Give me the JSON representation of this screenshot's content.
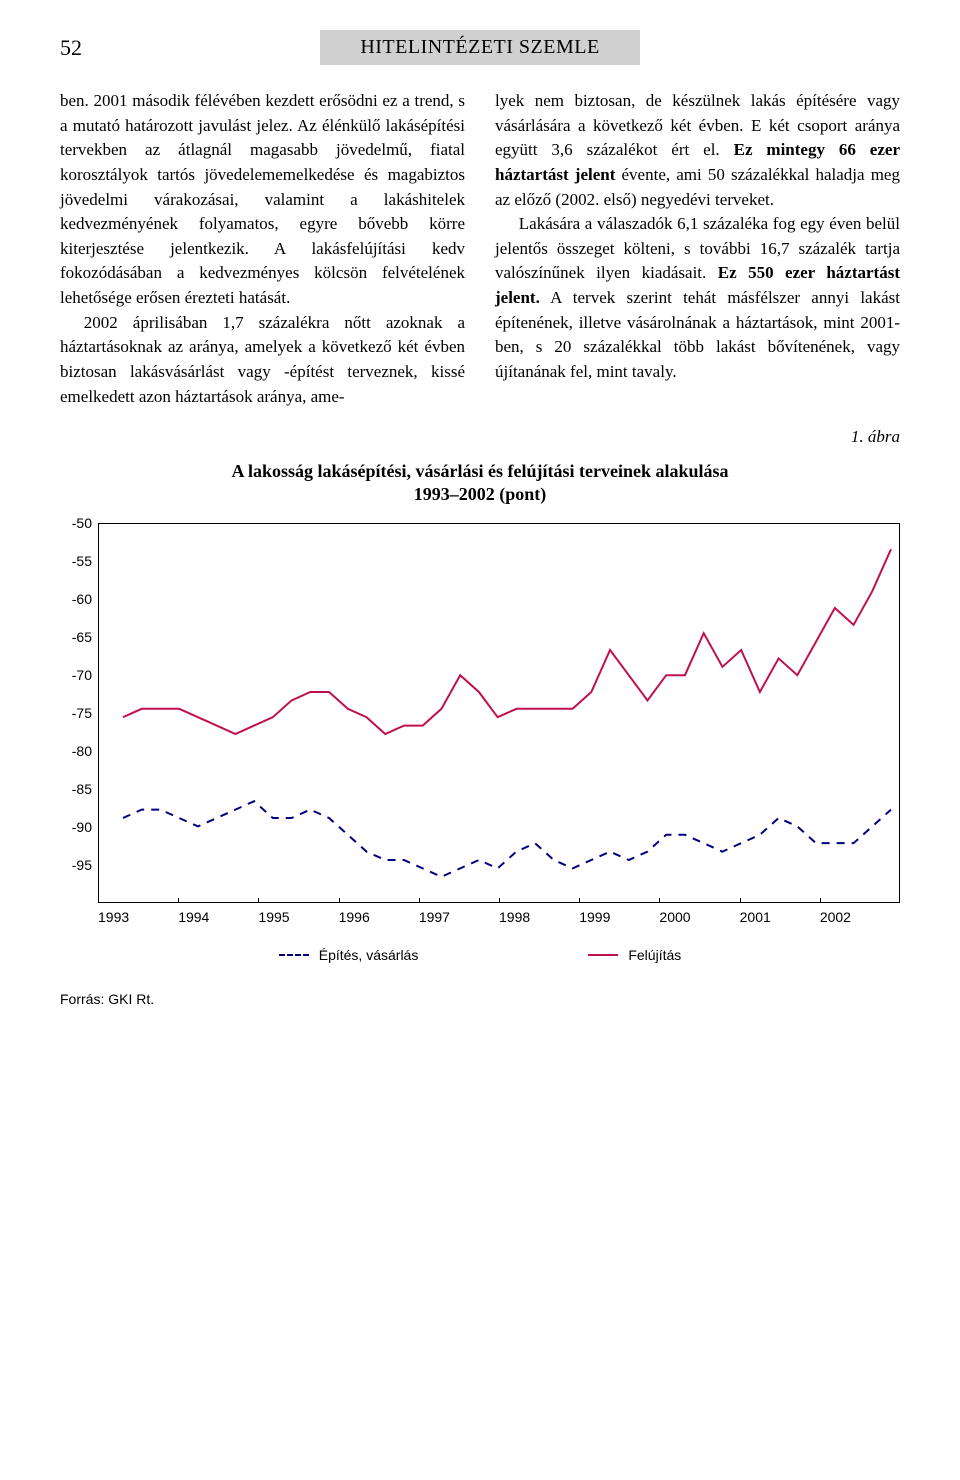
{
  "page_number": "52",
  "banner_title": "HITELINTÉZETI SZEMLE",
  "body": {
    "left": [
      "ben. 2001 második félévében kezdett erősödni ez a trend, s a mutató határozott javulást jelez. Az élénkülő lakásépítési tervekben az átlagnál magasabb jövedelmű, fiatal korosztályok tartós jövedelememelkedése és magabiztos jövedelmi várakozásai, valamint a lakáshitelek kedvezményének folyamatos, egyre bővebb körre kiterjesztése jelentkezik. A lakásfelújítási kedv fokozódásában a kedvezményes kölcsön felvételének lehetősége erősen érezteti hatását.",
      "2002 áprilisában 1,7 százalékra nőtt azoknak a háztartásoknak az aránya, amelyek a következő két évben biztosan lakásvásárlást vagy -építést terveznek, kissé emelkedett azon háztartások aránya, ame-"
    ],
    "right_pre": "lyek nem biztosan, de készülnek lakás építésére vagy vásárlására a következő két évben. E két csoport aránya együtt 3,6 százalékot ért el. ",
    "right_bold1": "Ez mintegy 66 ezer háztartást jelent",
    "right_mid1": " évente, ami 50 százalékkal haladja meg az előző (2002. első) negyedévi terveket.",
    "right_para2_pre": "Lakására a válaszadók 6,1 százaléka fog egy éven belül jelentős összeget költeni, s további 16,7 százalék tartja valószínűnek ilyen kiadásait. ",
    "right_bold2": "Ez 550 ezer háztartást jelent.",
    "right_para2_post": " A tervek szerint tehát másfélszer annyi lakást építenének, illetve vásárolnának a háztartások, mint 2001-ben, s 20 százalékkal több lakást bővítenének, vagy újítanának fel, mint tavaly."
  },
  "figure_label": "1. ábra",
  "chart": {
    "title": "A lakosság lakásépítési, vásárlási és felújítási terveinek alakulása",
    "subtitle": "1993–2002 (pont)",
    "type": "line",
    "ylim": [
      -95,
      -50
    ],
    "ytick_step": 5,
    "yticks": [
      "-50",
      "-55",
      "-60",
      "-65",
      "-70",
      "-75",
      "-80",
      "-85",
      "-90",
      "-95"
    ],
    "xcats": [
      "1993",
      "1994",
      "1995",
      "1996",
      "1997",
      "1998",
      "1999",
      "2000",
      "2001",
      "2002"
    ],
    "background_color": "#ffffff",
    "border_color": "#000000",
    "series": [
      {
        "name": "Felújítás",
        "color": "#c01050",
        "dash": "solid",
        "width": 2,
        "values": [
          -73,
          -72,
          -72,
          -72,
          -73,
          -74,
          -75,
          -74,
          -73,
          -71,
          -70,
          -70,
          -72,
          -73,
          -75,
          -74,
          -74,
          -72,
          -68,
          -70,
          -73,
          -72,
          -72,
          -72,
          -72,
          -70,
          -65,
          -68,
          -71,
          -68,
          -68,
          -63,
          -67,
          -65,
          -70,
          -66,
          -68,
          -64,
          -60,
          -62,
          -58,
          -53
        ]
      },
      {
        "name": "Építés, vásárlás",
        "color": "#000080",
        "dash": "dashed",
        "width": 2,
        "values": [
          -85,
          -84,
          -84,
          -85,
          -86,
          -85,
          -84,
          -83,
          -85,
          -85,
          -84,
          -85,
          -87,
          -89,
          -90,
          -90,
          -91,
          -92,
          -91,
          -90,
          -91,
          -89,
          -88,
          -90,
          -91,
          -90,
          -89,
          -90,
          -89,
          -87,
          -87,
          -88,
          -89,
          -88,
          -87,
          -85,
          -86,
          -88,
          -88,
          -88,
          -86,
          -84
        ]
      }
    ],
    "legend": [
      {
        "label": "Építés, vásárlás",
        "swatch": "dashed"
      },
      {
        "label": "Felújítás",
        "swatch": "solid"
      }
    ]
  },
  "source": "Forrás: GKI Rt."
}
